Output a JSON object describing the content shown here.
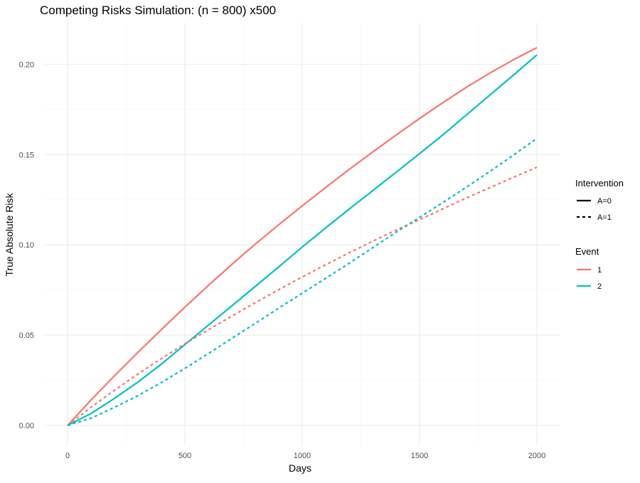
{
  "chart_data": {
    "type": "line",
    "title": "Competing Risks Simulation: (n = 800) x500",
    "xlabel": "Days",
    "ylabel": "True Absolute Risk",
    "xlim": [
      -100,
      2100
    ],
    "ylim": [
      -0.011,
      0.223
    ],
    "x_ticks": [
      0,
      500,
      1000,
      1500,
      2000
    ],
    "x_tick_labels": [
      "0",
      "500",
      "1000",
      "1500",
      "2000"
    ],
    "y_ticks": [
      0.0,
      0.05,
      0.1,
      0.15,
      0.2
    ],
    "y_tick_labels": [
      "0.00",
      "0.05",
      "0.10",
      "0.15",
      "0.20"
    ],
    "grid": true,
    "legend_position": "right",
    "legends": [
      {
        "title": "Intervention",
        "entries": [
          {
            "label": "A=0",
            "linetype": "solid"
          },
          {
            "label": "A=1",
            "linetype": "dashed"
          }
        ]
      },
      {
        "title": "Event",
        "entries": [
          {
            "label": "1",
            "color": "#F8766D"
          },
          {
            "label": "2",
            "color": "#00BFC4"
          }
        ]
      }
    ],
    "x": [
      0,
      100,
      200,
      300,
      400,
      500,
      600,
      700,
      800,
      900,
      1000,
      1100,
      1200,
      1300,
      1400,
      1500,
      1600,
      1700,
      1800,
      1900,
      2000
    ],
    "series": [
      {
        "event": "1",
        "intervention": "A=0",
        "color": "#F8766D",
        "linetype": "solid",
        "values": [
          0.0,
          0.0141,
          0.0275,
          0.0405,
          0.0531,
          0.0655,
          0.0775,
          0.0892,
          0.1004,
          0.1112,
          0.1216,
          0.1318,
          0.1418,
          0.1514,
          0.1608,
          0.17,
          0.1788,
          0.1873,
          0.1952,
          0.2025,
          0.2092
        ]
      },
      {
        "event": "2",
        "intervention": "A=0",
        "color": "#00BFC4",
        "linetype": "solid",
        "values": [
          0.0,
          0.0066,
          0.015,
          0.024,
          0.034,
          0.0448,
          0.0555,
          0.0662,
          0.077,
          0.0878,
          0.0988,
          0.1094,
          0.1198,
          0.13,
          0.1402,
          0.1505,
          0.161,
          0.172,
          0.183,
          0.194,
          0.2052
        ]
      },
      {
        "event": "1",
        "intervention": "A=1",
        "color": "#F8766D",
        "linetype": "dashed",
        "values": [
          0.0,
          0.01,
          0.0195,
          0.0285,
          0.037,
          0.0452,
          0.053,
          0.0605,
          0.068,
          0.0752,
          0.0822,
          0.089,
          0.0956,
          0.102,
          0.1082,
          0.114,
          0.12,
          0.126,
          0.1317,
          0.1374,
          0.143
        ]
      },
      {
        "event": "2",
        "intervention": "A=1",
        "color": "#00BFC4",
        "linetype": "dashed",
        "values": [
          0.0,
          0.004,
          0.01,
          0.0165,
          0.0238,
          0.0316,
          0.0398,
          0.0482,
          0.0565,
          0.065,
          0.0732,
          0.0815,
          0.0898,
          0.0984,
          0.107,
          0.1152,
          0.1235,
          0.132,
          0.1407,
          0.1497,
          0.159
        ]
      }
    ]
  }
}
